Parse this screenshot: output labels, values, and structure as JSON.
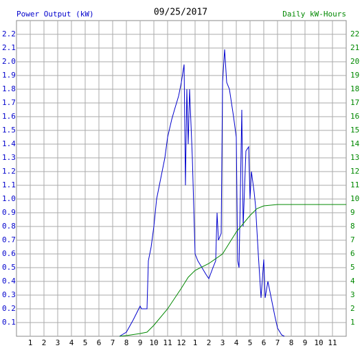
{
  "chart_data": {
    "type": "line",
    "title": "09/25/2017",
    "y_label": "Power Output (kW)",
    "y2_label": "Daily kW-Hours",
    "grid": true,
    "xlim": [
      0,
      24
    ],
    "xticks": [
      1,
      2,
      3,
      4,
      5,
      6,
      7,
      8,
      9,
      10,
      11,
      12,
      {
        "value": 13,
        "label": "1"
      },
      {
        "value": 14,
        "label": "2"
      },
      {
        "value": 15,
        "label": "3"
      },
      {
        "value": 16,
        "label": "4"
      },
      {
        "value": 17,
        "label": "5"
      },
      {
        "value": 18,
        "label": "6"
      },
      {
        "value": 19,
        "label": "7"
      },
      {
        "value": 20,
        "label": "8"
      },
      {
        "value": 21,
        "label": "9"
      },
      {
        "value": 22,
        "label": "10"
      },
      {
        "value": 23,
        "label": "11"
      }
    ],
    "ylim": [
      0,
      2.3
    ],
    "yticks": [
      0.1,
      0.2,
      0.3,
      0.4,
      0.5,
      0.6,
      0.7,
      0.8,
      0.9,
      {
        "value": 1,
        "label": "1.0"
      },
      1.1,
      1.2,
      1.3,
      1.4,
      1.5,
      1.6,
      1.7,
      1.8,
      1.9,
      {
        "value": 2,
        "label": "2.0"
      },
      2.1,
      2.2
    ],
    "y2lim": [
      0,
      23
    ],
    "y2ticks": [
      1,
      2,
      3,
      4,
      5,
      6,
      7,
      8,
      9,
      10,
      11,
      12,
      13,
      14,
      15,
      16,
      17,
      18,
      19,
      20,
      21,
      22
    ],
    "series": [
      {
        "color": "#0000cc",
        "axis": "y",
        "x": [
          7.5,
          8.0,
          8.5,
          9.0,
          9.1,
          9.5,
          9.6,
          9.8,
          10.0,
          10.2,
          10.5,
          10.8,
          11.0,
          11.3,
          11.5,
          11.8,
          12.0,
          12.2,
          12.3,
          12.4,
          12.5,
          12.6,
          12.8,
          13.0,
          13.2,
          13.5,
          13.8,
          14.0,
          14.3,
          14.5,
          14.6,
          14.7,
          14.9,
          15.0,
          15.15,
          15.3,
          15.5,
          15.8,
          16.0,
          16.1,
          16.2,
          16.4,
          16.5,
          16.7,
          16.9,
          17.0,
          17.1,
          17.3,
          17.4,
          17.6,
          17.8,
          18.0,
          18.1,
          18.3,
          18.5,
          18.8,
          19.0,
          19.3,
          19.5
        ],
        "values": [
          0,
          0.03,
          0.12,
          0.22,
          0.2,
          0.2,
          0.55,
          0.65,
          0.8,
          1.0,
          1.15,
          1.3,
          1.45,
          1.58,
          1.65,
          1.75,
          1.85,
          1.98,
          1.1,
          1.8,
          1.4,
          1.8,
          1.3,
          0.6,
          0.55,
          0.5,
          0.45,
          0.42,
          0.5,
          0.55,
          0.9,
          0.7,
          0.75,
          1.85,
          2.09,
          1.85,
          1.8,
          1.6,
          1.45,
          0.55,
          0.5,
          1.65,
          0.8,
          1.35,
          1.38,
          1.0,
          1.2,
          1.05,
          0.95,
          0.6,
          0.28,
          0.56,
          0.28,
          0.4,
          0.3,
          0.15,
          0.06,
          0.01,
          0
        ]
      },
      {
        "color": "#008800",
        "axis": "y2",
        "x": [
          7.5,
          8.0,
          9.0,
          9.5,
          10.0,
          11.0,
          12.0,
          12.5,
          13.0,
          14.0,
          15.0,
          15.5,
          16.0,
          17.0,
          17.5,
          18.0,
          19.0,
          24.0
        ],
        "values": [
          0,
          0.05,
          0.2,
          0.3,
          0.8,
          2.0,
          3.5,
          4.3,
          4.8,
          5.3,
          6.0,
          6.8,
          7.6,
          8.8,
          9.3,
          9.5,
          9.6,
          9.6
        ]
      }
    ]
  }
}
